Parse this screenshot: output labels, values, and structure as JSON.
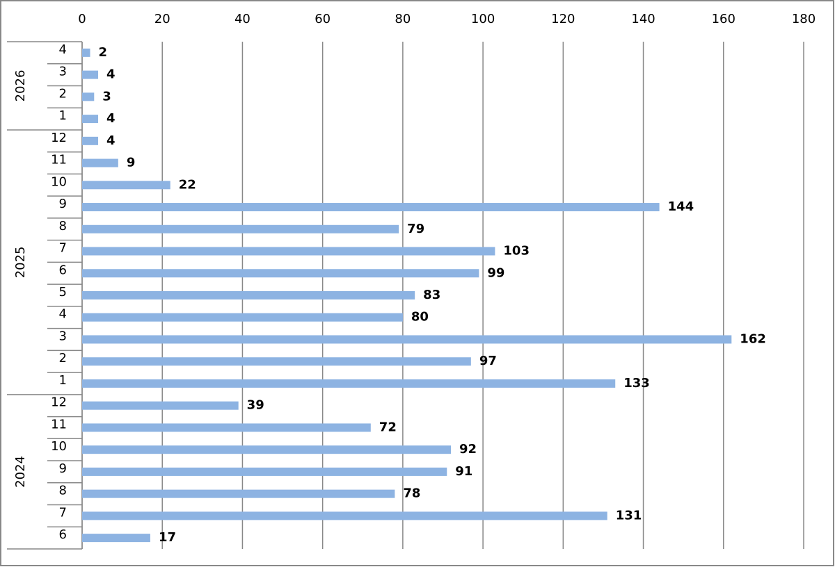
{
  "chart_data": {
    "type": "bar",
    "orientation": "horizontal",
    "color": "#8db3e2",
    "grid": true,
    "xlim": [
      0,
      180
    ],
    "xticks": [
      0,
      20,
      40,
      60,
      80,
      100,
      120,
      140,
      160,
      180
    ],
    "groups": [
      {
        "label": "2026",
        "categories": [
          "4",
          "3",
          "2",
          "1"
        ],
        "values": [
          2,
          4,
          3,
          4
        ]
      },
      {
        "label": "2025",
        "categories": [
          "12",
          "11",
          "10",
          "9",
          "8",
          "7",
          "6",
          "5",
          "4",
          "3",
          "2",
          "1"
        ],
        "values": [
          4,
          9,
          22,
          144,
          79,
          103,
          99,
          83,
          80,
          162,
          97,
          133
        ]
      },
      {
        "label": "2024",
        "categories": [
          "12",
          "11",
          "10",
          "9",
          "8",
          "7",
          "6"
        ],
        "values": [
          39,
          72,
          92,
          91,
          78,
          131,
          17
        ]
      }
    ]
  }
}
